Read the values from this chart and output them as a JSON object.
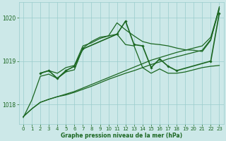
{
  "background_color": "#cce8e8",
  "grid_color": "#99cccc",
  "line_color": "#1a6620",
  "xlabel": "Graphe pression niveau de la mer (hPa)",
  "xlim": [
    -0.5,
    23.5
  ],
  "ylim": [
    1017.55,
    1020.35
  ],
  "yticks": [
    1018,
    1019,
    1020
  ],
  "xticks": [
    0,
    1,
    2,
    3,
    4,
    5,
    6,
    7,
    8,
    9,
    10,
    11,
    12,
    13,
    14,
    15,
    16,
    17,
    18,
    19,
    20,
    21,
    22,
    23
  ],
  "series": [
    {
      "x": [
        0,
        1,
        2,
        3,
        4,
        5,
        6,
        7,
        8,
        9,
        10,
        11,
        12,
        13,
        14,
        15,
        16,
        17,
        18,
        19,
        20,
        21,
        22,
        23
      ],
      "y": [
        1017.72,
        1017.9,
        1018.05,
        1018.12,
        1018.18,
        1018.22,
        1018.28,
        1018.35,
        1018.42,
        1018.5,
        1018.58,
        1018.65,
        1018.72,
        1018.78,
        1018.85,
        1018.92,
        1018.98,
        1019.05,
        1019.1,
        1019.15,
        1019.2,
        1019.25,
        1019.5,
        1020.2
      ],
      "marker": false,
      "lw": 0.9
    },
    {
      "x": [
        0,
        1,
        2,
        3,
        4,
        5,
        6,
        7,
        8,
        9,
        10,
        11,
        12,
        13,
        14,
        15,
        16,
        17,
        18,
        19,
        20,
        21,
        22,
        23
      ],
      "y": [
        1017.72,
        1017.9,
        1018.05,
        1018.12,
        1018.18,
        1018.24,
        1018.3,
        1018.38,
        1018.46,
        1018.54,
        1018.62,
        1018.7,
        1018.78,
        1018.86,
        1018.94,
        1019.02,
        1019.08,
        1019.14,
        1019.2,
        1019.25,
        1019.3,
        1019.35,
        1019.55,
        1020.22
      ],
      "marker": false,
      "lw": 0.9
    },
    {
      "x": [
        2,
        3,
        4,
        5,
        6,
        7,
        8,
        9,
        10,
        11,
        12,
        13,
        14,
        15,
        16,
        17,
        18,
        19,
        20,
        21,
        22,
        23
      ],
      "y": [
        1018.72,
        1018.78,
        1018.72,
        1018.85,
        1018.9,
        1019.35,
        1019.42,
        1019.52,
        1019.58,
        1019.62,
        1019.38,
        1019.35,
        1018.85,
        1018.72,
        1018.82,
        1018.72,
        1018.72,
        1018.75,
        1018.8,
        1018.85,
        1018.88,
        1018.9
      ],
      "marker": false,
      "lw": 0.9
    },
    {
      "x": [
        0,
        1,
        2,
        3,
        4,
        5,
        6,
        7,
        8,
        9,
        10,
        11,
        12,
        13,
        14,
        15,
        16,
        17,
        18,
        19,
        20,
        21,
        22,
        23
      ],
      "y": [
        1017.7,
        1018.1,
        1018.65,
        1018.7,
        1018.6,
        1018.75,
        1018.8,
        1019.3,
        1019.45,
        1019.55,
        1019.58,
        1019.88,
        1019.72,
        1019.58,
        1019.45,
        1019.4,
        1019.38,
        1019.35,
        1019.3,
        1019.26,
        1019.25,
        1019.22,
        1019.48,
        1020.25
      ],
      "marker": false,
      "lw": 0.9
    },
    {
      "x": [
        2,
        3,
        4,
        5,
        6,
        7,
        11,
        12,
        13,
        14,
        15,
        16,
        17,
        18,
        22,
        23
      ],
      "y": [
        1018.72,
        1018.78,
        1018.6,
        1018.78,
        1018.88,
        1019.28,
        1019.62,
        1019.92,
        1019.38,
        1019.35,
        1018.85,
        1019.05,
        1018.88,
        1018.78,
        1019.0,
        1020.1
      ],
      "marker": true,
      "lw": 1.2
    }
  ]
}
